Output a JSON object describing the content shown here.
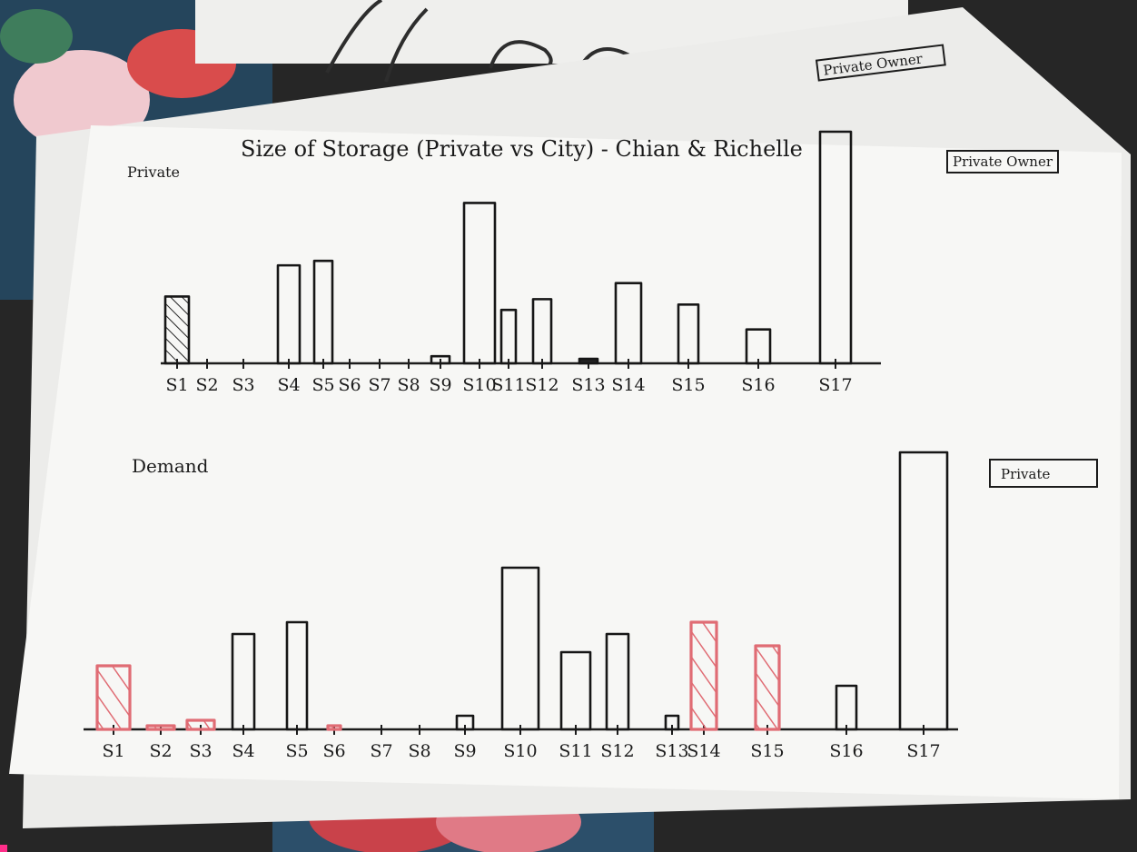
{
  "header": {
    "title": "Size of Storage (Private vs City) - Chian & Richelle",
    "corner_label": "Private"
  },
  "dropdowns": {
    "back_sheet": "Private Owner",
    "storage": "Private Owner",
    "demand": "Private"
  },
  "colors": {
    "ink": "#161616",
    "highlight": "#e06c74",
    "paper": "#f7f7f5"
  },
  "chart_data": [
    {
      "type": "bar",
      "title": "Size of Storage (Private vs City) - Chian & Richelle",
      "categories": [
        "S1",
        "S2",
        "S3",
        "S4",
        "S5",
        "S6",
        "S7",
        "S8",
        "S9",
        "S10",
        "S11",
        "S12",
        "S13",
        "S14",
        "S15",
        "S16",
        "S17"
      ],
      "values": [
        75,
        0,
        0,
        110,
        115,
        0,
        0,
        0,
        8,
        180,
        60,
        72,
        5,
        90,
        66,
        38,
        260
      ],
      "hatched": [
        true,
        false,
        false,
        false,
        false,
        false,
        false,
        false,
        false,
        false,
        false,
        false,
        false,
        false,
        false,
        false,
        false
      ],
      "filled": [
        false,
        false,
        false,
        false,
        false,
        false,
        false,
        false,
        false,
        false,
        false,
        false,
        true,
        false,
        false,
        false,
        false
      ],
      "xlabel": "",
      "ylabel": "",
      "ylim": [
        0,
        260
      ]
    },
    {
      "type": "bar",
      "title": "Demand",
      "categories": [
        "S1",
        "S2",
        "S3",
        "S4",
        "S5",
        "S6",
        "S7",
        "S8",
        "S9",
        "S10",
        "S11",
        "S12",
        "S13",
        "S14",
        "S15",
        "S16",
        "S17"
      ],
      "values": [
        70,
        3,
        10,
        105,
        118,
        4,
        0,
        0,
        15,
        178,
        85,
        105,
        15,
        118,
        92,
        48,
        305
      ],
      "highlighted": [
        true,
        true,
        true,
        false,
        false,
        true,
        false,
        false,
        false,
        false,
        false,
        false,
        false,
        true,
        true,
        false,
        false
      ],
      "xlabel": "",
      "ylabel": "",
      "ylim": [
        0,
        305
      ]
    }
  ]
}
